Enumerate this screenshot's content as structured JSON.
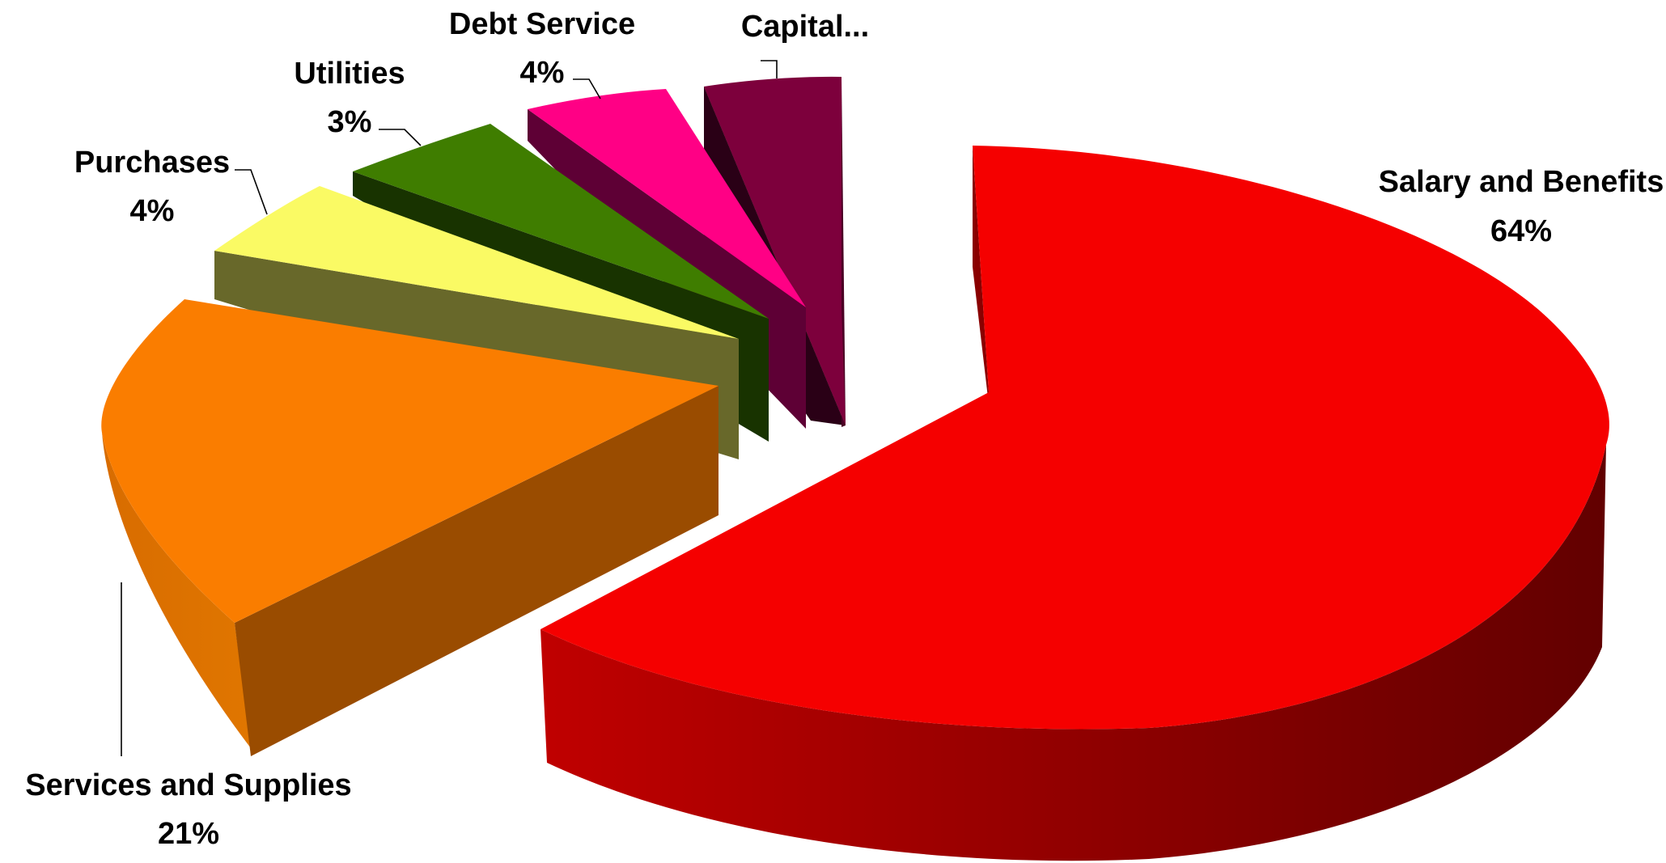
{
  "chart_data": {
    "type": "pie",
    "style": "3d-exploded",
    "title": "",
    "slices": [
      {
        "label": "Salary and Benefits",
        "percent_label": "64%",
        "value": 64,
        "color": "#f50000"
      },
      {
        "label": "Services and Supplies",
        "percent_label": "21%",
        "value": 21,
        "color": "#fa7d00"
      },
      {
        "label": "Purchases",
        "percent_label": "4%",
        "value": 4,
        "color": "#fafa64"
      },
      {
        "label": "Utilities",
        "percent_label": "3%",
        "value": 3,
        "color": "#3f7d00"
      },
      {
        "label": "Debt Service",
        "percent_label": "4%",
        "value": 4,
        "color": "#ff0085"
      },
      {
        "label": "Capital...",
        "percent_label": "",
        "value": 4,
        "color": "#7d003c"
      }
    ]
  }
}
